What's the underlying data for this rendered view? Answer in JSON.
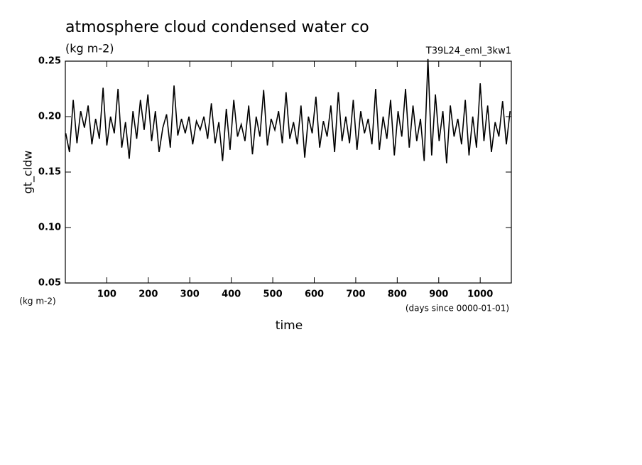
{
  "chart_data": {
    "type": "line",
    "title": "atmosphere cloud condensed water co",
    "subtitle": "(kg m-2)",
    "annotation": "T39L24_eml_3kw1",
    "y_label": "gt_cldw",
    "y_unit": "(kg m-2)",
    "x_label": "time",
    "x_unit": "(days since 0000-01-01)",
    "x": [
      1,
      10,
      19,
      28,
      37,
      46,
      55,
      64,
      73,
      82,
      91,
      100,
      109,
      118,
      127,
      136,
      145,
      154,
      163,
      172,
      181,
      190,
      199,
      208,
      217,
      226,
      235,
      244,
      253,
      262,
      271,
      280,
      289,
      298,
      307,
      316,
      325,
      334,
      343,
      352,
      361,
      370,
      379,
      388,
      397,
      406,
      415,
      424,
      433,
      442,
      451,
      460,
      469,
      478,
      487,
      496,
      505,
      514,
      523,
      532,
      541,
      550,
      559,
      568,
      577,
      586,
      595,
      604,
      613,
      622,
      631,
      640,
      649,
      658,
      667,
      676,
      685,
      694,
      703,
      712,
      721,
      730,
      739,
      748,
      757,
      766,
      775,
      784,
      793,
      802,
      811,
      820,
      829,
      838,
      847,
      856,
      865,
      874,
      883,
      892,
      901,
      910,
      919,
      928,
      937,
      946,
      955,
      964,
      973,
      982,
      991,
      1000,
      1009,
      1018,
      1027,
      1036,
      1045,
      1054,
      1063,
      1072
    ],
    "series": [
      {
        "name": "gt_cldw",
        "color": "#000000",
        "values": [
          0.185,
          0.168,
          0.215,
          0.176,
          0.205,
          0.19,
          0.21,
          0.175,
          0.198,
          0.18,
          0.226,
          0.174,
          0.2,
          0.185,
          0.225,
          0.172,
          0.195,
          0.162,
          0.205,
          0.18,
          0.215,
          0.188,
          0.22,
          0.178,
          0.205,
          0.168,
          0.19,
          0.202,
          0.172,
          0.228,
          0.183,
          0.198,
          0.185,
          0.2,
          0.175,
          0.196,
          0.188,
          0.2,
          0.18,
          0.212,
          0.176,
          0.195,
          0.16,
          0.207,
          0.17,
          0.215,
          0.182,
          0.193,
          0.178,
          0.21,
          0.166,
          0.2,
          0.182,
          0.224,
          0.174,
          0.198,
          0.188,
          0.205,
          0.176,
          0.222,
          0.18,
          0.195,
          0.175,
          0.21,
          0.163,
          0.2,
          0.185,
          0.218,
          0.172,
          0.196,
          0.182,
          0.21,
          0.168,
          0.222,
          0.178,
          0.2,
          0.176,
          0.215,
          0.17,
          0.205,
          0.185,
          0.198,
          0.175,
          0.225,
          0.17,
          0.2,
          0.18,
          0.215,
          0.165,
          0.205,
          0.182,
          0.225,
          0.172,
          0.21,
          0.178,
          0.198,
          0.16,
          0.252,
          0.165,
          0.22,
          0.178,
          0.205,
          0.158,
          0.21,
          0.182,
          0.198,
          0.175,
          0.215,
          0.165,
          0.2,
          0.172,
          0.23,
          0.178,
          0.21,
          0.168,
          0.195,
          0.182,
          0.214,
          0.175,
          0.205
        ]
      }
    ],
    "xlim": [
      0,
      1075
    ],
    "ylim": [
      0.05,
      0.25
    ],
    "xticks": [
      100,
      200,
      300,
      400,
      500,
      600,
      700,
      800,
      900,
      1000
    ],
    "yticks": [
      0.05,
      {
        "value": 0.1,
        "label": "0.10"
      },
      0.15,
      {
        "value": 0.2,
        "label": "0.20"
      },
      0.25
    ]
  }
}
